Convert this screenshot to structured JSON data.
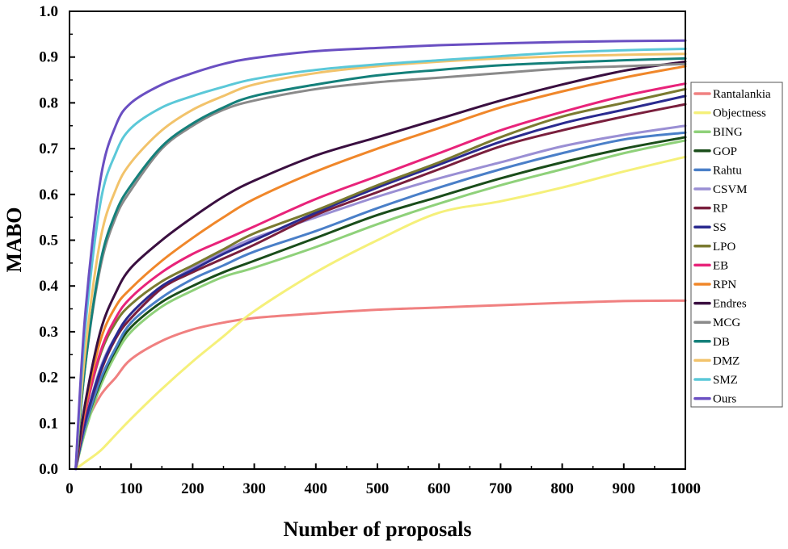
{
  "chart_data": {
    "type": "line",
    "title": "",
    "xlabel": "Number of proposals",
    "ylabel": "MABO",
    "xlim": [
      0,
      1000
    ],
    "ylim": [
      0.0,
      1.0
    ],
    "xticks": [
      0,
      100,
      200,
      300,
      400,
      500,
      600,
      700,
      800,
      900,
      1000
    ],
    "yticks": [
      "0.0",
      "0.1",
      "0.2",
      "0.3",
      "0.4",
      "0.5",
      "0.6",
      "0.7",
      "0.8",
      "0.9",
      "1.0"
    ],
    "grid": false,
    "legend_position": "right",
    "x": [
      10,
      25,
      50,
      75,
      100,
      150,
      200,
      250,
      300,
      400,
      500,
      600,
      700,
      800,
      900,
      1000
    ],
    "series": [
      {
        "name": "Rantalankia",
        "color": "#F08080",
        "values": [
          0.0,
          0.09,
          0.16,
          0.2,
          0.24,
          0.28,
          0.305,
          0.32,
          0.33,
          0.34,
          0.348,
          0.353,
          0.358,
          0.363,
          0.367,
          0.368
        ]
      },
      {
        "name": "Objectness",
        "color": "#F5F07A",
        "values": [
          0.0,
          0.015,
          0.04,
          0.075,
          0.11,
          0.175,
          0.235,
          0.29,
          0.345,
          0.43,
          0.5,
          0.56,
          0.585,
          0.615,
          0.65,
          0.682
        ]
      },
      {
        "name": "BING",
        "color": "#8FD17A",
        "values": [
          0.0,
          0.08,
          0.18,
          0.25,
          0.3,
          0.355,
          0.39,
          0.42,
          0.44,
          0.485,
          0.535,
          0.58,
          0.62,
          0.655,
          0.69,
          0.718
        ]
      },
      {
        "name": "GOP",
        "color": "#1A4D1A",
        "values": [
          0.0,
          0.09,
          0.19,
          0.26,
          0.31,
          0.365,
          0.4,
          0.43,
          0.455,
          0.505,
          0.555,
          0.595,
          0.635,
          0.67,
          0.7,
          0.725
        ]
      },
      {
        "name": "Rahtu",
        "color": "#4A7FC8",
        "values": [
          0.0,
          0.09,
          0.195,
          0.265,
          0.32,
          0.375,
          0.415,
          0.445,
          0.475,
          0.52,
          0.57,
          0.615,
          0.655,
          0.69,
          0.72,
          0.735
        ]
      },
      {
        "name": "CSVM",
        "color": "#9A8FD4",
        "values": [
          0.0,
          0.1,
          0.22,
          0.29,
          0.33,
          0.395,
          0.44,
          0.475,
          0.505,
          0.55,
          0.595,
          0.635,
          0.67,
          0.705,
          0.73,
          0.75
        ]
      },
      {
        "name": "RP",
        "color": "#7A1F3D",
        "values": [
          0.0,
          0.1,
          0.21,
          0.285,
          0.33,
          0.395,
          0.43,
          0.46,
          0.49,
          0.555,
          0.605,
          0.655,
          0.705,
          0.74,
          0.77,
          0.797
        ]
      },
      {
        "name": "SS",
        "color": "#2A2A8F",
        "values": [
          0.0,
          0.1,
          0.215,
          0.29,
          0.34,
          0.4,
          0.435,
          0.47,
          0.5,
          0.56,
          0.615,
          0.665,
          0.715,
          0.755,
          0.785,
          0.815
        ]
      },
      {
        "name": "LPO",
        "color": "#7A7A30",
        "values": [
          0.0,
          0.12,
          0.25,
          0.32,
          0.36,
          0.41,
          0.445,
          0.48,
          0.515,
          0.565,
          0.62,
          0.67,
          0.725,
          0.77,
          0.8,
          0.83
        ]
      },
      {
        "name": "EB",
        "color": "#E8237A",
        "values": [
          0.0,
          0.12,
          0.255,
          0.33,
          0.375,
          0.43,
          0.47,
          0.5,
          0.53,
          0.59,
          0.64,
          0.69,
          0.74,
          0.78,
          0.815,
          0.842
        ]
      },
      {
        "name": "RPN",
        "color": "#F0872A",
        "values": [
          0.0,
          0.13,
          0.28,
          0.355,
          0.395,
          0.455,
          0.505,
          0.55,
          0.59,
          0.65,
          0.7,
          0.745,
          0.79,
          0.825,
          0.855,
          0.88
        ]
      },
      {
        "name": "Endres",
        "color": "#3A0F40",
        "values": [
          0.0,
          0.14,
          0.3,
          0.385,
          0.44,
          0.5,
          0.55,
          0.595,
          0.63,
          0.685,
          0.725,
          0.765,
          0.805,
          0.84,
          0.87,
          0.89
        ]
      },
      {
        "name": "MCG",
        "color": "#8A8A8A",
        "values": [
          0.0,
          0.22,
          0.44,
          0.55,
          0.61,
          0.7,
          0.75,
          0.785,
          0.805,
          0.83,
          0.845,
          0.855,
          0.865,
          0.875,
          0.88,
          0.885
        ]
      },
      {
        "name": "DB",
        "color": "#14807A",
        "values": [
          0.0,
          0.22,
          0.45,
          0.56,
          0.62,
          0.705,
          0.755,
          0.79,
          0.815,
          0.84,
          0.86,
          0.872,
          0.882,
          0.888,
          0.893,
          0.897
        ]
      },
      {
        "name": "DMZ",
        "color": "#F2C36B",
        "values": [
          0.0,
          0.25,
          0.5,
          0.61,
          0.67,
          0.74,
          0.785,
          0.815,
          0.84,
          0.865,
          0.88,
          0.89,
          0.897,
          0.902,
          0.905,
          0.907
        ]
      },
      {
        "name": "SMZ",
        "color": "#5BC8D8",
        "values": [
          0.0,
          0.3,
          0.58,
          0.69,
          0.745,
          0.79,
          0.815,
          0.835,
          0.852,
          0.872,
          0.884,
          0.893,
          0.902,
          0.91,
          0.915,
          0.918
        ]
      },
      {
        "name": "Ours",
        "color": "#6A4FC2",
        "values": [
          0.0,
          0.33,
          0.63,
          0.75,
          0.8,
          0.84,
          0.865,
          0.885,
          0.898,
          0.913,
          0.92,
          0.926,
          0.93,
          0.933,
          0.935,
          0.936
        ]
      }
    ]
  }
}
